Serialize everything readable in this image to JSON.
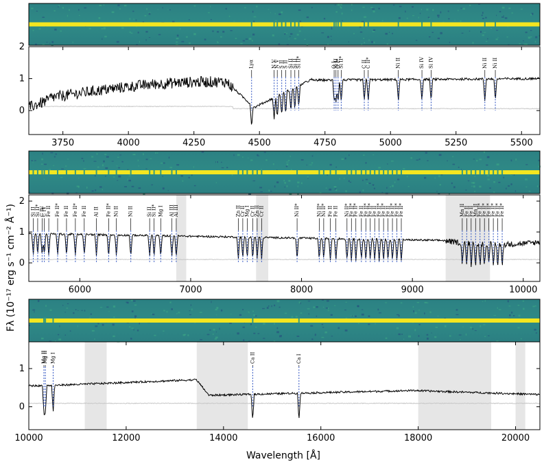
{
  "chart_data": [
    {
      "type": "line",
      "panel": "top",
      "x_range": [
        3620,
        5570
      ],
      "ylim": [
        -0.75,
        2.0
      ],
      "x_ticks": [
        "3750",
        "4000",
        "4250",
        "4500",
        "4750",
        "5000",
        "5250",
        "5500"
      ],
      "x_tick_values": [
        3750,
        4000,
        4250,
        4500,
        4750,
        5000,
        5250,
        5500
      ],
      "y_ticks": [
        "0",
        "1",
        "2"
      ],
      "y_tick_values": [
        0,
        1,
        2
      ],
      "shaded_regions": [],
      "features": [
        {
          "label": "Lyα",
          "x": 4470
        },
        {
          "label": "N V",
          "x": 4556
        },
        {
          "label": "N V",
          "x": 4568
        },
        {
          "label": "S II",
          "x": 4585
        },
        {
          "label": "S II",
          "x": 4600
        },
        {
          "label": "Si II",
          "x": 4620
        },
        {
          "label": "Si II",
          "x": 4635
        },
        {
          "label": "Si II*",
          "x": 4650
        },
        {
          "label": "O I",
          "x": 4785
        },
        {
          "label": "Si II",
          "x": 4792
        },
        {
          "label": "O I*",
          "x": 4800
        },
        {
          "label": "Si II*",
          "x": 4812
        },
        {
          "label": "C II",
          "x": 4900
        },
        {
          "label": "C II*",
          "x": 4915
        },
        {
          "label": "Ni II",
          "x": 5030
        },
        {
          "label": "Si IV",
          "x": 5120
        },
        {
          "label": "Si IV",
          "x": 5155
        },
        {
          "label": "Ni II",
          "x": 5360
        },
        {
          "label": "Ni II",
          "x": 5400
        }
      ]
    },
    {
      "type": "line",
      "panel": "middle",
      "x_range": [
        5540,
        10150
      ],
      "ylim": [
        -0.6,
        2.2
      ],
      "x_ticks": [
        "6000",
        "7000",
        "8000",
        "9000",
        "10000"
      ],
      "x_tick_values": [
        6000,
        7000,
        8000,
        9000,
        10000
      ],
      "y_ticks": [
        "0",
        "1",
        "2"
      ],
      "y_tick_values": [
        0,
        1,
        2
      ],
      "shaded_regions": [
        [
          6870,
          6960
        ],
        [
          7590,
          7700
        ],
        [
          9300,
          9700
        ]
      ],
      "features": [
        {
          "label": "Si II",
          "x": 5580
        },
        {
          "label": "Si II*",
          "x": 5620
        },
        {
          "label": "C IV",
          "x": 5660
        },
        {
          "label": "C IV",
          "x": 5680
        },
        {
          "label": "Fe II",
          "x": 5720
        },
        {
          "label": "Fe II*",
          "x": 5800
        },
        {
          "label": "Fe II",
          "x": 5880
        },
        {
          "label": "Fe II*",
          "x": 5960
        },
        {
          "label": "Fe II",
          "x": 6040
        },
        {
          "label": "Al II",
          "x": 6150
        },
        {
          "label": "Fe II*",
          "x": 6260
        },
        {
          "label": "Ni II",
          "x": 6330
        },
        {
          "label": "Ni II",
          "x": 6460
        },
        {
          "label": "Si II",
          "x": 6630
        },
        {
          "label": "Si II*",
          "x": 6670
        },
        {
          "label": "Mg I",
          "x": 6730
        },
        {
          "label": "Al III",
          "x": 6830
        },
        {
          "label": "Al III",
          "x": 6870
        },
        {
          "label": "Zn II",
          "x": 7430
        },
        {
          "label": "Cr II",
          "x": 7470
        },
        {
          "label": "Mg I",
          "x": 7510
        },
        {
          "label": "Cr II",
          "x": 7560
        },
        {
          "label": "Zn II",
          "x": 7600
        },
        {
          "label": "Cr II",
          "x": 7640
        },
        {
          "label": "Ni II*",
          "x": 7960
        },
        {
          "label": "Ni II*",
          "x": 8160
        },
        {
          "label": "Ni II*",
          "x": 8200
        },
        {
          "label": "Fe II",
          "x": 8260
        },
        {
          "label": "Fe II",
          "x": 8310
        },
        {
          "label": "Ni II*",
          "x": 8410
        },
        {
          "label": "Fe II*",
          "x": 8450
        },
        {
          "label": "Fe II*",
          "x": 8490
        },
        {
          "label": "Fe II",
          "x": 8540
        },
        {
          "label": "Fe II*",
          "x": 8580
        },
        {
          "label": "Fe II*",
          "x": 8620
        },
        {
          "label": "Fe II",
          "x": 8660
        },
        {
          "label": "Fe II*",
          "x": 8700
        },
        {
          "label": "Fe II*",
          "x": 8740
        },
        {
          "label": "Fe II",
          "x": 8780
        },
        {
          "label": "Fe II*",
          "x": 8820
        },
        {
          "label": "Fe II*",
          "x": 8860
        },
        {
          "label": "Fe II*",
          "x": 8900
        },
        {
          "label": "Mn II",
          "x": 9450
        },
        {
          "label": "Fe II",
          "x": 9490
        },
        {
          "label": "Fe II",
          "x": 9530
        },
        {
          "label": "Mn II",
          "x": 9570
        },
        {
          "label": "Fe II*",
          "x": 9610
        },
        {
          "label": "Fe II*",
          "x": 9650
        },
        {
          "label": "Fe II*",
          "x": 9690
        },
        {
          "label": "Fe II*",
          "x": 9730
        },
        {
          "label": "Fe II*",
          "x": 9770
        },
        {
          "label": "Fe II*",
          "x": 9810
        }
      ]
    },
    {
      "type": "line",
      "panel": "bottom",
      "x_range": [
        10000,
        20500
      ],
      "ylim": [
        -0.6,
        1.7
      ],
      "x_ticks": [
        "10000",
        "12000",
        "14000",
        "16000",
        "18000",
        "20000"
      ],
      "x_tick_values": [
        10000,
        12000,
        14000,
        16000,
        18000,
        20000
      ],
      "y_ticks": [
        "0",
        "1"
      ],
      "y_tick_values": [
        0,
        1
      ],
      "shaded_regions": [
        [
          11150,
          11600
        ],
        [
          13450,
          14500
        ],
        [
          18000,
          19500
        ],
        [
          20000,
          20200
        ]
      ],
      "features": [
        {
          "label": "Mg II",
          "x": 10310
        },
        {
          "label": "Mg II",
          "x": 10340
        },
        {
          "label": "Mg I",
          "x": 10500
        },
        {
          "label": "Ca II",
          "x": 14600
        },
        {
          "label": "Ca I",
          "x": 15550
        }
      ]
    }
  ],
  "axes": {
    "ylabel": "Fλ (10⁻¹⁷ erg s⁻¹ cm⁻² Å⁻¹)",
    "xlabel": "Wavelength [Å]"
  },
  "colors": {
    "flux": "#000000",
    "error": "#c8c8c8",
    "marker": "#2a4fc0",
    "shade": "#e6e6e6",
    "image_bg": "#2f8a86",
    "trace": "#f4e620"
  }
}
